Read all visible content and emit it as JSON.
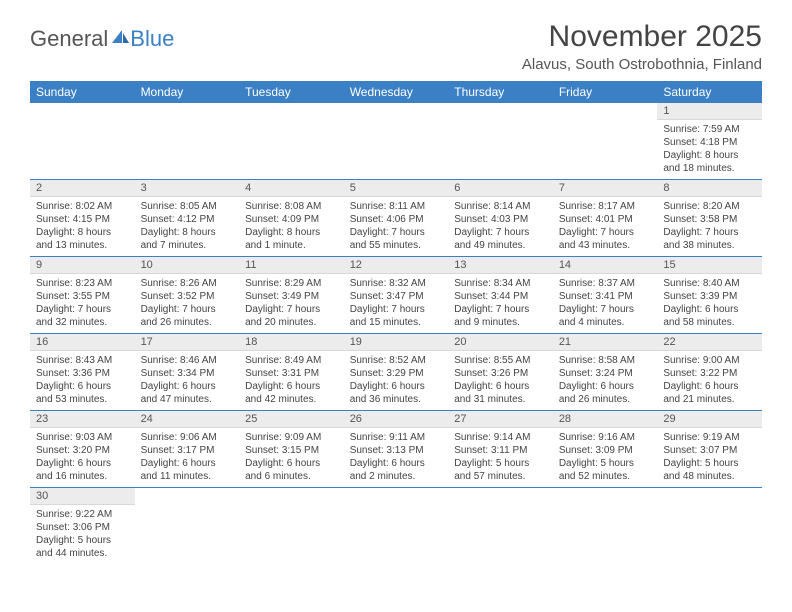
{
  "brand": {
    "part1": "General",
    "part2": "Blue"
  },
  "title": "November 2025",
  "location": "Alavus, South Ostrobothnia, Finland",
  "colors": {
    "header_bg": "#3b7fc4",
    "daynum_bg": "#ececec",
    "text": "#444444"
  },
  "weekdays": [
    "Sunday",
    "Monday",
    "Tuesday",
    "Wednesday",
    "Thursday",
    "Friday",
    "Saturday"
  ],
  "weeks": [
    [
      null,
      null,
      null,
      null,
      null,
      null,
      {
        "n": "1",
        "sunrise": "Sunrise: 7:59 AM",
        "sunset": "Sunset: 4:18 PM",
        "daylight": "Daylight: 8 hours and 18 minutes."
      }
    ],
    [
      {
        "n": "2",
        "sunrise": "Sunrise: 8:02 AM",
        "sunset": "Sunset: 4:15 PM",
        "daylight": "Daylight: 8 hours and 13 minutes."
      },
      {
        "n": "3",
        "sunrise": "Sunrise: 8:05 AM",
        "sunset": "Sunset: 4:12 PM",
        "daylight": "Daylight: 8 hours and 7 minutes."
      },
      {
        "n": "4",
        "sunrise": "Sunrise: 8:08 AM",
        "sunset": "Sunset: 4:09 PM",
        "daylight": "Daylight: 8 hours and 1 minute."
      },
      {
        "n": "5",
        "sunrise": "Sunrise: 8:11 AM",
        "sunset": "Sunset: 4:06 PM",
        "daylight": "Daylight: 7 hours and 55 minutes."
      },
      {
        "n": "6",
        "sunrise": "Sunrise: 8:14 AM",
        "sunset": "Sunset: 4:03 PM",
        "daylight": "Daylight: 7 hours and 49 minutes."
      },
      {
        "n": "7",
        "sunrise": "Sunrise: 8:17 AM",
        "sunset": "Sunset: 4:01 PM",
        "daylight": "Daylight: 7 hours and 43 minutes."
      },
      {
        "n": "8",
        "sunrise": "Sunrise: 8:20 AM",
        "sunset": "Sunset: 3:58 PM",
        "daylight": "Daylight: 7 hours and 38 minutes."
      }
    ],
    [
      {
        "n": "9",
        "sunrise": "Sunrise: 8:23 AM",
        "sunset": "Sunset: 3:55 PM",
        "daylight": "Daylight: 7 hours and 32 minutes."
      },
      {
        "n": "10",
        "sunrise": "Sunrise: 8:26 AM",
        "sunset": "Sunset: 3:52 PM",
        "daylight": "Daylight: 7 hours and 26 minutes."
      },
      {
        "n": "11",
        "sunrise": "Sunrise: 8:29 AM",
        "sunset": "Sunset: 3:49 PM",
        "daylight": "Daylight: 7 hours and 20 minutes."
      },
      {
        "n": "12",
        "sunrise": "Sunrise: 8:32 AM",
        "sunset": "Sunset: 3:47 PM",
        "daylight": "Daylight: 7 hours and 15 minutes."
      },
      {
        "n": "13",
        "sunrise": "Sunrise: 8:34 AM",
        "sunset": "Sunset: 3:44 PM",
        "daylight": "Daylight: 7 hours and 9 minutes."
      },
      {
        "n": "14",
        "sunrise": "Sunrise: 8:37 AM",
        "sunset": "Sunset: 3:41 PM",
        "daylight": "Daylight: 7 hours and 4 minutes."
      },
      {
        "n": "15",
        "sunrise": "Sunrise: 8:40 AM",
        "sunset": "Sunset: 3:39 PM",
        "daylight": "Daylight: 6 hours and 58 minutes."
      }
    ],
    [
      {
        "n": "16",
        "sunrise": "Sunrise: 8:43 AM",
        "sunset": "Sunset: 3:36 PM",
        "daylight": "Daylight: 6 hours and 53 minutes."
      },
      {
        "n": "17",
        "sunrise": "Sunrise: 8:46 AM",
        "sunset": "Sunset: 3:34 PM",
        "daylight": "Daylight: 6 hours and 47 minutes."
      },
      {
        "n": "18",
        "sunrise": "Sunrise: 8:49 AM",
        "sunset": "Sunset: 3:31 PM",
        "daylight": "Daylight: 6 hours and 42 minutes."
      },
      {
        "n": "19",
        "sunrise": "Sunrise: 8:52 AM",
        "sunset": "Sunset: 3:29 PM",
        "daylight": "Daylight: 6 hours and 36 minutes."
      },
      {
        "n": "20",
        "sunrise": "Sunrise: 8:55 AM",
        "sunset": "Sunset: 3:26 PM",
        "daylight": "Daylight: 6 hours and 31 minutes."
      },
      {
        "n": "21",
        "sunrise": "Sunrise: 8:58 AM",
        "sunset": "Sunset: 3:24 PM",
        "daylight": "Daylight: 6 hours and 26 minutes."
      },
      {
        "n": "22",
        "sunrise": "Sunrise: 9:00 AM",
        "sunset": "Sunset: 3:22 PM",
        "daylight": "Daylight: 6 hours and 21 minutes."
      }
    ],
    [
      {
        "n": "23",
        "sunrise": "Sunrise: 9:03 AM",
        "sunset": "Sunset: 3:20 PM",
        "daylight": "Daylight: 6 hours and 16 minutes."
      },
      {
        "n": "24",
        "sunrise": "Sunrise: 9:06 AM",
        "sunset": "Sunset: 3:17 PM",
        "daylight": "Daylight: 6 hours and 11 minutes."
      },
      {
        "n": "25",
        "sunrise": "Sunrise: 9:09 AM",
        "sunset": "Sunset: 3:15 PM",
        "daylight": "Daylight: 6 hours and 6 minutes."
      },
      {
        "n": "26",
        "sunrise": "Sunrise: 9:11 AM",
        "sunset": "Sunset: 3:13 PM",
        "daylight": "Daylight: 6 hours and 2 minutes."
      },
      {
        "n": "27",
        "sunrise": "Sunrise: 9:14 AM",
        "sunset": "Sunset: 3:11 PM",
        "daylight": "Daylight: 5 hours and 57 minutes."
      },
      {
        "n": "28",
        "sunrise": "Sunrise: 9:16 AM",
        "sunset": "Sunset: 3:09 PM",
        "daylight": "Daylight: 5 hours and 52 minutes."
      },
      {
        "n": "29",
        "sunrise": "Sunrise: 9:19 AM",
        "sunset": "Sunset: 3:07 PM",
        "daylight": "Daylight: 5 hours and 48 minutes."
      }
    ],
    [
      {
        "n": "30",
        "sunrise": "Sunrise: 9:22 AM",
        "sunset": "Sunset: 3:06 PM",
        "daylight": "Daylight: 5 hours and 44 minutes."
      },
      null,
      null,
      null,
      null,
      null,
      null
    ]
  ]
}
